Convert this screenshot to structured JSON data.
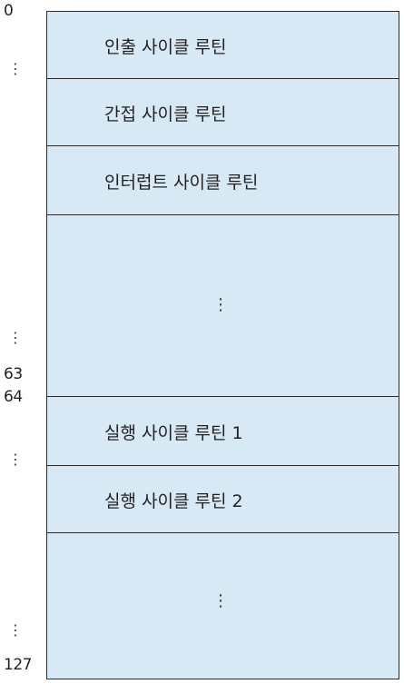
{
  "addresses": {
    "a0": "0",
    "a63": "63",
    "a64": "64",
    "a127": "127",
    "ellipsis": "⋮"
  },
  "rows": [
    {
      "label": "인출 사이클 루틴"
    },
    {
      "label": "간접 사이클 루틴"
    },
    {
      "label": "인터럽트 사이클 루틴"
    },
    {
      "label": "⋮"
    },
    {
      "label": "실행 사이클 루틴 1"
    },
    {
      "label": "실행 사이클 루틴 2"
    },
    {
      "label": "⋮"
    }
  ],
  "colors": {
    "cell_fill": "#d8e9f6",
    "border": "#2b2b2b"
  }
}
